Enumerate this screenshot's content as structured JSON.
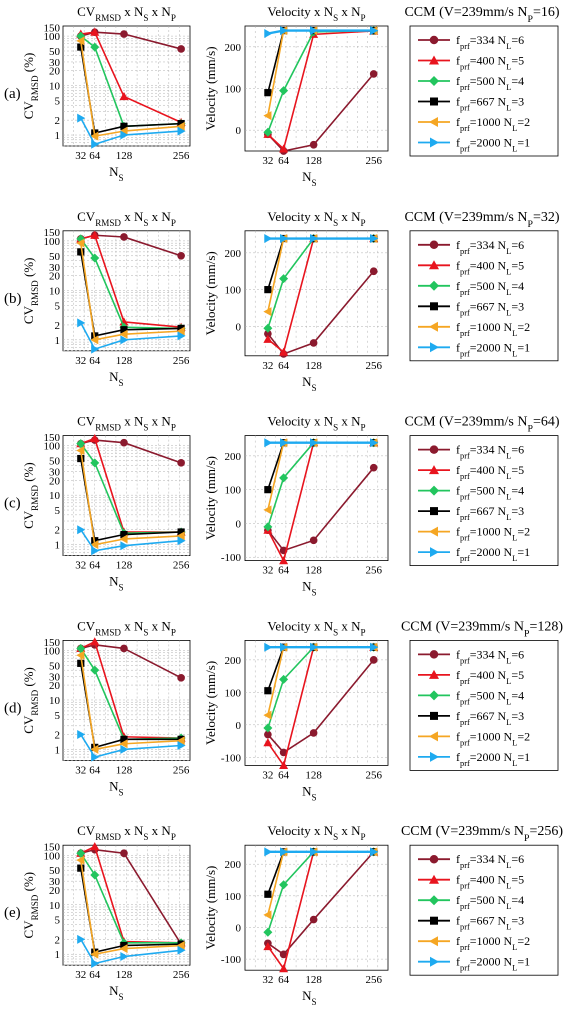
{
  "figure": {
    "row_labels": [
      "(a)",
      "(b)",
      "(c)",
      "(d)",
      "(e)"
    ],
    "cv_title": "CV_RMSD x N_S x N_P",
    "vel_title": "Velocity x N_S x N_P",
    "cv_ylabel": "CV_RMSD (%)",
    "vel_ylabel": "Velocity (mm/s)",
    "xlabel": "N_S",
    "x_ticks": [
      "32",
      "64",
      "128",
      "256"
    ],
    "cv_yticks": [
      "1",
      "2",
      "5",
      "10",
      "20",
      "30",
      "50",
      "100",
      "150"
    ],
    "legend": [
      {
        "label": "f_prf=334 N_L=6",
        "color": "#8b1a2e",
        "marker": "circle"
      },
      {
        "label": "f_prf=400 N_L=5",
        "color": "#e8141e",
        "marker": "triangle-up"
      },
      {
        "label": "f_prf=500 N_L=4",
        "color": "#22c55e",
        "marker": "diamond"
      },
      {
        "label": "f_prf=667 N_L=3",
        "color": "#000000",
        "marker": "square"
      },
      {
        "label": "f_prf=1000 N_L=2",
        "color": "#f5a623",
        "marker": "triangle-left"
      },
      {
        "label": "f_prf=2000 N_L=1",
        "color": "#1eaaf0",
        "marker": "triangle-right"
      }
    ]
  },
  "chart_data": [
    {
      "panel": "(a)",
      "type": "line",
      "ccm_label": "CCM (V=239mm/s N_P=16)",
      "x": [
        32,
        64,
        128,
        256
      ],
      "cv": {
        "yscale": "log",
        "ylim": [
          0.6,
          160
        ],
        "series": [
          {
            "name": "f_prf=334 N_L=6",
            "values": [
              100,
              120,
              110,
              55
            ]
          },
          {
            "name": "f_prf=400 N_L=5",
            "values": [
              110,
              120,
              6,
              1.8
            ]
          },
          {
            "name": "f_prf=500 N_L=4",
            "values": [
              100,
              60,
              1.5,
              1.7
            ]
          },
          {
            "name": "f_prf=667 N_L=3",
            "values": [
              60,
              1.1,
              1.5,
              1.7
            ]
          },
          {
            "name": "f_prf=1000 N_L=2",
            "values": [
              80,
              0.95,
              1.2,
              1.5
            ]
          },
          {
            "name": "f_prf=2000 N_L=1",
            "values": [
              2.2,
              0.65,
              1.0,
              1.2
            ]
          }
        ]
      },
      "velocity": {
        "ylim": [
          -50,
          250
        ],
        "yticks": [
          0,
          100,
          200
        ],
        "series": [
          {
            "name": "f_prf=334 N_L=6",
            "values": [
              -10,
              -50,
              -35,
              135
            ]
          },
          {
            "name": "f_prf=400 N_L=5",
            "values": [
              -10,
              -45,
              230,
              238
            ]
          },
          {
            "name": "f_prf=500 N_L=4",
            "values": [
              -5,
              95,
              236,
              239
            ]
          },
          {
            "name": "f_prf=667 N_L=3",
            "values": [
              90,
              239,
              239,
              239
            ]
          },
          {
            "name": "f_prf=1000 N_L=2",
            "values": [
              35,
              239,
              239,
              239
            ]
          },
          {
            "name": "f_prf=2000 N_L=1",
            "values": [
              232,
              239,
              239,
              239
            ]
          }
        ]
      }
    },
    {
      "panel": "(b)",
      "type": "line",
      "ccm_label": "CCM (V=239mm/s N_P=32)",
      "x": [
        32,
        64,
        128,
        256
      ],
      "cv": {
        "yscale": "log",
        "ylim": [
          0.6,
          160
        ],
        "series": [
          {
            "name": "f_prf=334 N_L=6",
            "values": [
              110,
              130,
              120,
              50
            ]
          },
          {
            "name": "f_prf=400 N_L=5",
            "values": [
              110,
              130,
              2.3,
              1.8
            ]
          },
          {
            "name": "f_prf=500 N_L=4",
            "values": [
              110,
              45,
              1.8,
              1.7
            ]
          },
          {
            "name": "f_prf=667 N_L=3",
            "values": [
              60,
              1.2,
              1.6,
              1.7
            ]
          },
          {
            "name": "f_prf=1000 N_L=2",
            "values": [
              90,
              1.0,
              1.3,
              1.5
            ]
          },
          {
            "name": "f_prf=2000 N_L=1",
            "values": [
              2.2,
              0.65,
              1.0,
              1.2
            ]
          }
        ]
      },
      "velocity": {
        "ylim": [
          -80,
          260
        ],
        "yticks": [
          0,
          100,
          200
        ],
        "series": [
          {
            "name": "f_prf=334 N_L=6",
            "values": [
              -20,
              -75,
              -45,
              150
            ]
          },
          {
            "name": "f_prf=400 N_L=5",
            "values": [
              -35,
              -70,
              239,
              239
            ]
          },
          {
            "name": "f_prf=500 N_L=4",
            "values": [
              -5,
              130,
              239,
              239
            ]
          },
          {
            "name": "f_prf=667 N_L=3",
            "values": [
              100,
              239,
              239,
              239
            ]
          },
          {
            "name": "f_prf=1000 N_L=2",
            "values": [
              40,
              239,
              239,
              239
            ]
          },
          {
            "name": "f_prf=2000 N_L=1",
            "values": [
              239,
              239,
              239,
              239
            ]
          }
        ]
      }
    },
    {
      "panel": "(c)",
      "type": "line",
      "ccm_label": "CCM (V=239mm/s N_P=64)",
      "x": [
        32,
        64,
        128,
        256
      ],
      "cv": {
        "yscale": "log",
        "ylim": [
          0.6,
          160
        ],
        "series": [
          {
            "name": "f_prf=334 N_L=6",
            "values": [
              110,
              130,
              115,
              45
            ]
          },
          {
            "name": "f_prf=400 N_L=5",
            "values": [
              110,
              140,
              1.8,
              1.8
            ]
          },
          {
            "name": "f_prf=500 N_L=4",
            "values": [
              110,
              45,
              1.7,
              1.8
            ]
          },
          {
            "name": "f_prf=667 N_L=3",
            "values": [
              55,
              1.2,
              1.6,
              1.8
            ]
          },
          {
            "name": "f_prf=1000 N_L=2",
            "values": [
              80,
              1.0,
              1.3,
              1.5
            ]
          },
          {
            "name": "f_prf=2000 N_L=1",
            "values": [
              2.0,
              0.75,
              0.95,
              1.2
            ]
          }
        ]
      },
      "velocity": {
        "ylim": [
          -110,
          260
        ],
        "yticks": [
          -100,
          0,
          100,
          200
        ],
        "series": [
          {
            "name": "f_prf=334 N_L=6",
            "values": [
              -20,
              -80,
              -50,
              165
            ]
          },
          {
            "name": "f_prf=400 N_L=5",
            "values": [
              -20,
              -110,
              239,
              239
            ]
          },
          {
            "name": "f_prf=500 N_L=4",
            "values": [
              -10,
              135,
              239,
              239
            ]
          },
          {
            "name": "f_prf=667 N_L=3",
            "values": [
              100,
              239,
              239,
              239
            ]
          },
          {
            "name": "f_prf=1000 N_L=2",
            "values": [
              40,
              239,
              239,
              239
            ]
          },
          {
            "name": "f_prf=2000 N_L=1",
            "values": [
              239,
              239,
              239,
              239
            ]
          }
        ]
      }
    },
    {
      "panel": "(d)",
      "type": "line",
      "ccm_label": "CCM (V=239mm/s N_P=128)",
      "x": [
        32,
        64,
        128,
        256
      ],
      "cv": {
        "yscale": "log",
        "ylim": [
          0.6,
          160
        ],
        "series": [
          {
            "name": "f_prf=334 N_L=6",
            "values": [
              110,
              130,
              110,
              28
            ]
          },
          {
            "name": "f_prf=400 N_L=5",
            "values": [
              110,
              150,
              1.8,
              1.7
            ]
          },
          {
            "name": "f_prf=500 N_L=4",
            "values": [
              110,
              40,
              1.6,
              1.7
            ]
          },
          {
            "name": "f_prf=667 N_L=3",
            "values": [
              55,
              1.1,
              1.6,
              1.6
            ]
          },
          {
            "name": "f_prf=1000 N_L=2",
            "values": [
              80,
              1.0,
              1.3,
              1.5
            ]
          },
          {
            "name": "f_prf=2000 N_L=1",
            "values": [
              2.0,
              0.7,
              1.0,
              1.2
            ]
          }
        ]
      },
      "velocity": {
        "ylim": [
          -125,
          260
        ],
        "yticks": [
          -100,
          0,
          100,
          200
        ],
        "series": [
          {
            "name": "f_prf=334 N_L=6",
            "values": [
              -30,
              -85,
              -25,
              200
            ]
          },
          {
            "name": "f_prf=400 N_L=5",
            "values": [
              -55,
              -125,
              239,
              239
            ]
          },
          {
            "name": "f_prf=500 N_L=4",
            "values": [
              -10,
              140,
              239,
              239
            ]
          },
          {
            "name": "f_prf=667 N_L=3",
            "values": [
              105,
              239,
              239,
              239
            ]
          },
          {
            "name": "f_prf=1000 N_L=2",
            "values": [
              30,
              239,
              239,
              239
            ]
          },
          {
            "name": "f_prf=2000 N_L=1",
            "values": [
              239,
              239,
              239,
              239
            ]
          }
        ]
      }
    },
    {
      "panel": "(e)",
      "type": "line",
      "ccm_label": "CCM (V=239mm/s N_P=256)",
      "x": [
        32,
        64,
        128,
        256
      ],
      "cv": {
        "yscale": "log",
        "ylim": [
          0.6,
          160
        ],
        "series": [
          {
            "name": "f_prf=334 N_L=6",
            "values": [
              110,
              130,
              110,
              1.6
            ]
          },
          {
            "name": "f_prf=400 N_L=5",
            "values": [
              110,
              150,
              1.8,
              1.7
            ]
          },
          {
            "name": "f_prf=500 N_L=4",
            "values": [
              110,
              40,
              1.7,
              1.7
            ]
          },
          {
            "name": "f_prf=667 N_L=3",
            "values": [
              55,
              1.1,
              1.5,
              1.6
            ]
          },
          {
            "name": "f_prf=1000 N_L=2",
            "values": [
              80,
              1.0,
              1.3,
              1.5
            ]
          },
          {
            "name": "f_prf=2000 N_L=1",
            "values": [
              2.0,
              0.65,
              0.9,
              1.2
            ]
          }
        ]
      },
      "velocity": {
        "ylim": [
          -135,
          260
        ],
        "yticks": [
          -100,
          0,
          100,
          200
        ],
        "series": [
          {
            "name": "f_prf=334 N_L=6",
            "values": [
              -50,
              -85,
              25,
              239
            ]
          },
          {
            "name": "f_prf=400 N_L=5",
            "values": [
              -60,
              -130,
              239,
              239
            ]
          },
          {
            "name": "f_prf=500 N_L=4",
            "values": [
              -15,
              135,
              239,
              239
            ]
          },
          {
            "name": "f_prf=667 N_L=3",
            "values": [
              105,
              239,
              239,
              239
            ]
          },
          {
            "name": "f_prf=1000 N_L=2",
            "values": [
              40,
              239,
              239,
              239
            ]
          },
          {
            "name": "f_prf=2000 N_L=1",
            "values": [
              239,
              239,
              239,
              239
            ]
          }
        ]
      }
    }
  ]
}
